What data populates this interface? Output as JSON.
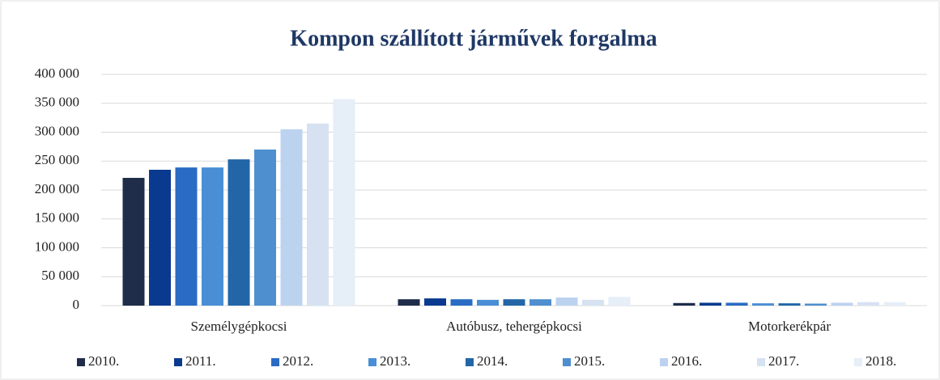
{
  "chart_data": {
    "type": "bar",
    "title": "Kompon szállított járművek forgalma",
    "categories": [
      "Személygépkocsi",
      "Autóbusz, tehergépkocsi",
      "Motorkerékpár"
    ],
    "series": [
      {
        "name": "2010.",
        "color": "#1f2d4a",
        "values": [
          221000,
          11000,
          4500
        ]
      },
      {
        "name": "2011.",
        "color": "#0a3a8f",
        "values": [
          235000,
          12500,
          5000
        ]
      },
      {
        "name": "2012.",
        "color": "#2a6bc4",
        "values": [
          239000,
          11000,
          5000
        ]
      },
      {
        "name": "2013.",
        "color": "#4a8fd6",
        "values": [
          239000,
          10000,
          4000
        ]
      },
      {
        "name": "2014.",
        "color": "#2266a8",
        "values": [
          253000,
          11000,
          4000
        ]
      },
      {
        "name": "2015.",
        "color": "#4e8fd0",
        "values": [
          270000,
          11000,
          3500
        ]
      },
      {
        "name": "2016.",
        "color": "#bcd3ef",
        "values": [
          305000,
          14000,
          5000
        ]
      },
      {
        "name": "2017.",
        "color": "#d6e2f2",
        "values": [
          315000,
          10000,
          6000
        ]
      },
      {
        "name": "2018.",
        "color": "#e6eef8",
        "values": [
          357000,
          15000,
          6000
        ]
      }
    ],
    "ylim": [
      0,
      400000
    ],
    "yticks": [
      0,
      {
        "value": 50000,
        "label": "50 000"
      },
      {
        "value": 100000,
        "label": "100 000"
      },
      {
        "value": 150000,
        "label": "150 000"
      },
      {
        "value": 200000,
        "label": "200 000"
      },
      {
        "value": 250000,
        "label": "250 000"
      },
      {
        "value": 300000,
        "label": "300 000"
      },
      {
        "value": 350000,
        "label": "350 000"
      },
      {
        "value": 400000,
        "label": "400 000"
      }
    ],
    "grid": true,
    "legend": "bottom"
  }
}
